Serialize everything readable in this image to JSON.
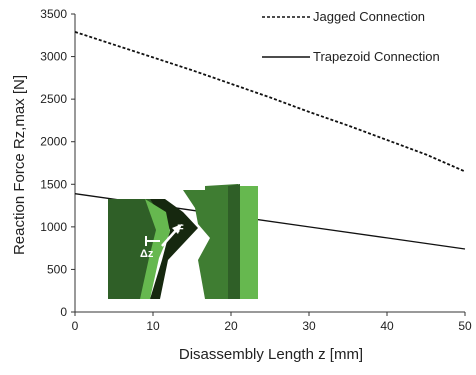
{
  "chart_data": {
    "type": "line",
    "title": "",
    "xlabel": "Disassembly Length z [mm]",
    "ylabel": "Reaction Force Rz,max [N]",
    "xlim": [
      0,
      50
    ],
    "ylim": [
      0,
      3500
    ],
    "xticks": [
      0,
      10,
      20,
      30,
      40,
      50
    ],
    "yticks": [
      0,
      500,
      1000,
      1500,
      2000,
      2500,
      3000,
      3500
    ],
    "grid": false,
    "legend_position": "top-right",
    "series": [
      {
        "name": "Jagged Connection",
        "line_style": "dashed",
        "color": "#111111",
        "x": [
          0,
          5,
          10,
          15,
          20,
          25,
          30,
          35,
          40,
          45,
          50
        ],
        "y": [
          3290,
          3140,
          2990,
          2840,
          2680,
          2520,
          2350,
          2190,
          2020,
          1850,
          1650
        ]
      },
      {
        "name": "Trapezoid Connection",
        "line_style": "solid",
        "color": "#111111",
        "x": [
          0,
          10,
          20,
          30,
          40,
          50
        ],
        "y": [
          1390,
          1260,
          1130,
          1000,
          870,
          740
        ]
      }
    ],
    "inset": {
      "description_labels": [
        "F",
        "Δz"
      ],
      "colors": {
        "dark_green": "#2f5f27",
        "mid_green": "#3f7d32",
        "light_green": "#66b84f",
        "shadow": "#16280f"
      }
    }
  }
}
